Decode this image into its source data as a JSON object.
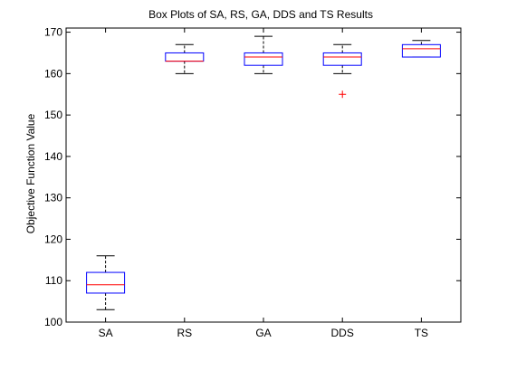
{
  "chart_data": {
    "type": "box",
    "title": "Box Plots of SA, RS, GA, DDS and TS Results",
    "xlabel": "",
    "ylabel": "Objective Function Value",
    "ylim": [
      100,
      171
    ],
    "yticks": [
      100,
      110,
      120,
      130,
      140,
      150,
      160,
      170
    ],
    "ytick_labels": [
      "100",
      "110",
      "120",
      "130",
      "140",
      "150",
      "160",
      "170"
    ],
    "categories": [
      "SA",
      "RS",
      "GA",
      "DDS",
      "TS"
    ],
    "grid": false,
    "colors": {
      "box": "#0000ff",
      "median": "#ff0000",
      "whisker": "#000000",
      "outlier": "#ff0000",
      "axes": "#000000"
    },
    "boxes": [
      {
        "label": "SA",
        "min": 103,
        "q1": 107,
        "median": 109,
        "q3": 112,
        "max": 116,
        "outliers": []
      },
      {
        "label": "RS",
        "min": 160,
        "q1": 163,
        "median": 163,
        "q3": 165,
        "max": 167,
        "outliers": []
      },
      {
        "label": "GA",
        "min": 160,
        "q1": 162,
        "median": 164,
        "q3": 165,
        "max": 169,
        "outliers": []
      },
      {
        "label": "DDS",
        "min": 160,
        "q1": 162,
        "median": 164,
        "q3": 165,
        "max": 167,
        "outliers": [
          155
        ]
      },
      {
        "label": "TS",
        "min": 164,
        "q1": 164,
        "median": 166,
        "q3": 167,
        "max": 168,
        "outliers": []
      }
    ]
  }
}
